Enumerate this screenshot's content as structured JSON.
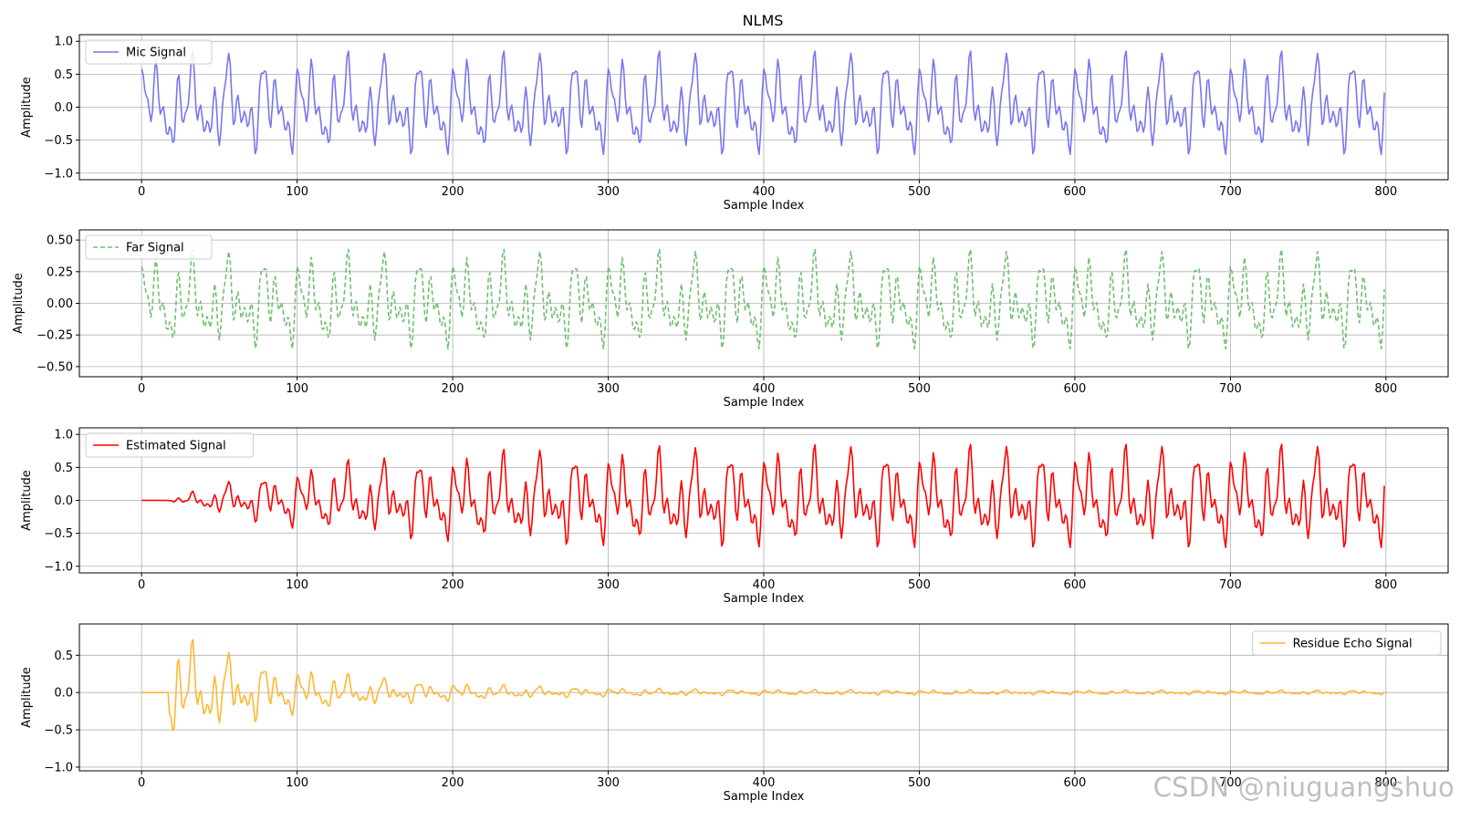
{
  "chart_data": {
    "type": "line",
    "title": "NLMS",
    "watermark": "CSDN @niuguangshuo",
    "x": {
      "start": 0,
      "end": 799,
      "step": 1
    },
    "xlim": [
      -40,
      840
    ],
    "xticks": [
      0,
      100,
      200,
      300,
      400,
      500,
      600,
      700,
      800
    ],
    "grid": true,
    "subplots": [
      {
        "name": "mic",
        "legend": "Mic Signal",
        "legend_loc": "upper-left",
        "color": "#7777ee",
        "line_style": "solid",
        "xlabel": "Sample Index",
        "ylabel": "Amplitude",
        "ylim": [
          -1.1,
          1.1
        ],
        "yticks": [
          -1.0,
          -0.5,
          0.0,
          0.5,
          1.0
        ],
        "ytick_labels": [
          "−1.0",
          "−0.5",
          "0.0",
          "0.5",
          "1.0"
        ],
        "signal": {
          "period": 100,
          "components": [
            {
              "amp": 0.3,
              "freq_cycles_per_sample": 0.04
            },
            {
              "amp": 0.25,
              "freq_cycles_per_sample": 0.13
            },
            {
              "amp": 0.25,
              "freq_cycles_per_sample": 0.09
            },
            {
              "amp": 0.2,
              "freq_cycles_per_sample": 0.21
            }
          ],
          "envelope": "constant"
        }
      },
      {
        "name": "far",
        "legend": "Far Signal",
        "legend_loc": "upper-left",
        "color": "#6fbf6f",
        "line_style": "dashed",
        "xlabel": "Sample Index",
        "ylabel": "Amplitude",
        "ylim": [
          -0.58,
          0.58
        ],
        "yticks": [
          -0.5,
          -0.25,
          0.0,
          0.25,
          0.5
        ],
        "ytick_labels": [
          "−0.50",
          "−0.25",
          "0.00",
          "0.25",
          "0.50"
        ],
        "signal": {
          "period": 100,
          "components": [
            {
              "amp": 0.15,
              "freq_cycles_per_sample": 0.04
            },
            {
              "amp": 0.125,
              "freq_cycles_per_sample": 0.13
            },
            {
              "amp": 0.125,
              "freq_cycles_per_sample": 0.09
            },
            {
              "amp": 0.1,
              "freq_cycles_per_sample": 0.21
            }
          ],
          "envelope": "constant"
        }
      },
      {
        "name": "estimated",
        "legend": "Estimated Signal",
        "legend_loc": "upper-left",
        "color": "#ff0000",
        "line_style": "solid",
        "xlabel": "Sample Index",
        "ylabel": "Amplitude",
        "ylim": [
          -1.1,
          1.1
        ],
        "yticks": [
          -1.0,
          -0.5,
          0.0,
          0.5,
          1.0
        ],
        "ytick_labels": [
          "−1.0",
          "−0.5",
          "0.0",
          "0.5",
          "1.0"
        ],
        "signal": {
          "period": 100,
          "components": [
            {
              "amp": 0.3,
              "freq_cycles_per_sample": 0.04
            },
            {
              "amp": 0.25,
              "freq_cycles_per_sample": 0.13
            },
            {
              "amp": 0.25,
              "freq_cycles_per_sample": 0.09
            },
            {
              "amp": 0.2,
              "freq_cycles_per_sample": 0.21
            }
          ],
          "envelope": "rising",
          "start_delay": 17,
          "time_constant": 90
        }
      },
      {
        "name": "residue",
        "legend": "Residue Echo Signal",
        "legend_loc": "upper-right",
        "color": "#ffb733",
        "line_style": "solid",
        "xlabel": "Sample Index",
        "ylabel": "Amplitude",
        "ylim": [
          -1.05,
          0.92
        ],
        "yticks": [
          -1.0,
          -0.5,
          0.0,
          0.5
        ],
        "ytick_labels": [
          "−1.0",
          "−0.5",
          "0.0",
          "0.5"
        ],
        "signal": {
          "period": 100,
          "components": [
            {
              "amp": 0.3,
              "freq_cycles_per_sample": 0.04
            },
            {
              "amp": 0.25,
              "freq_cycles_per_sample": 0.13
            },
            {
              "amp": 0.25,
              "freq_cycles_per_sample": 0.09
            },
            {
              "amp": 0.2,
              "freq_cycles_per_sample": 0.21
            }
          ],
          "envelope": "decaying",
          "start_delay": 17,
          "time_constant": 90,
          "floor_amplitude": 0.04
        }
      }
    ]
  }
}
